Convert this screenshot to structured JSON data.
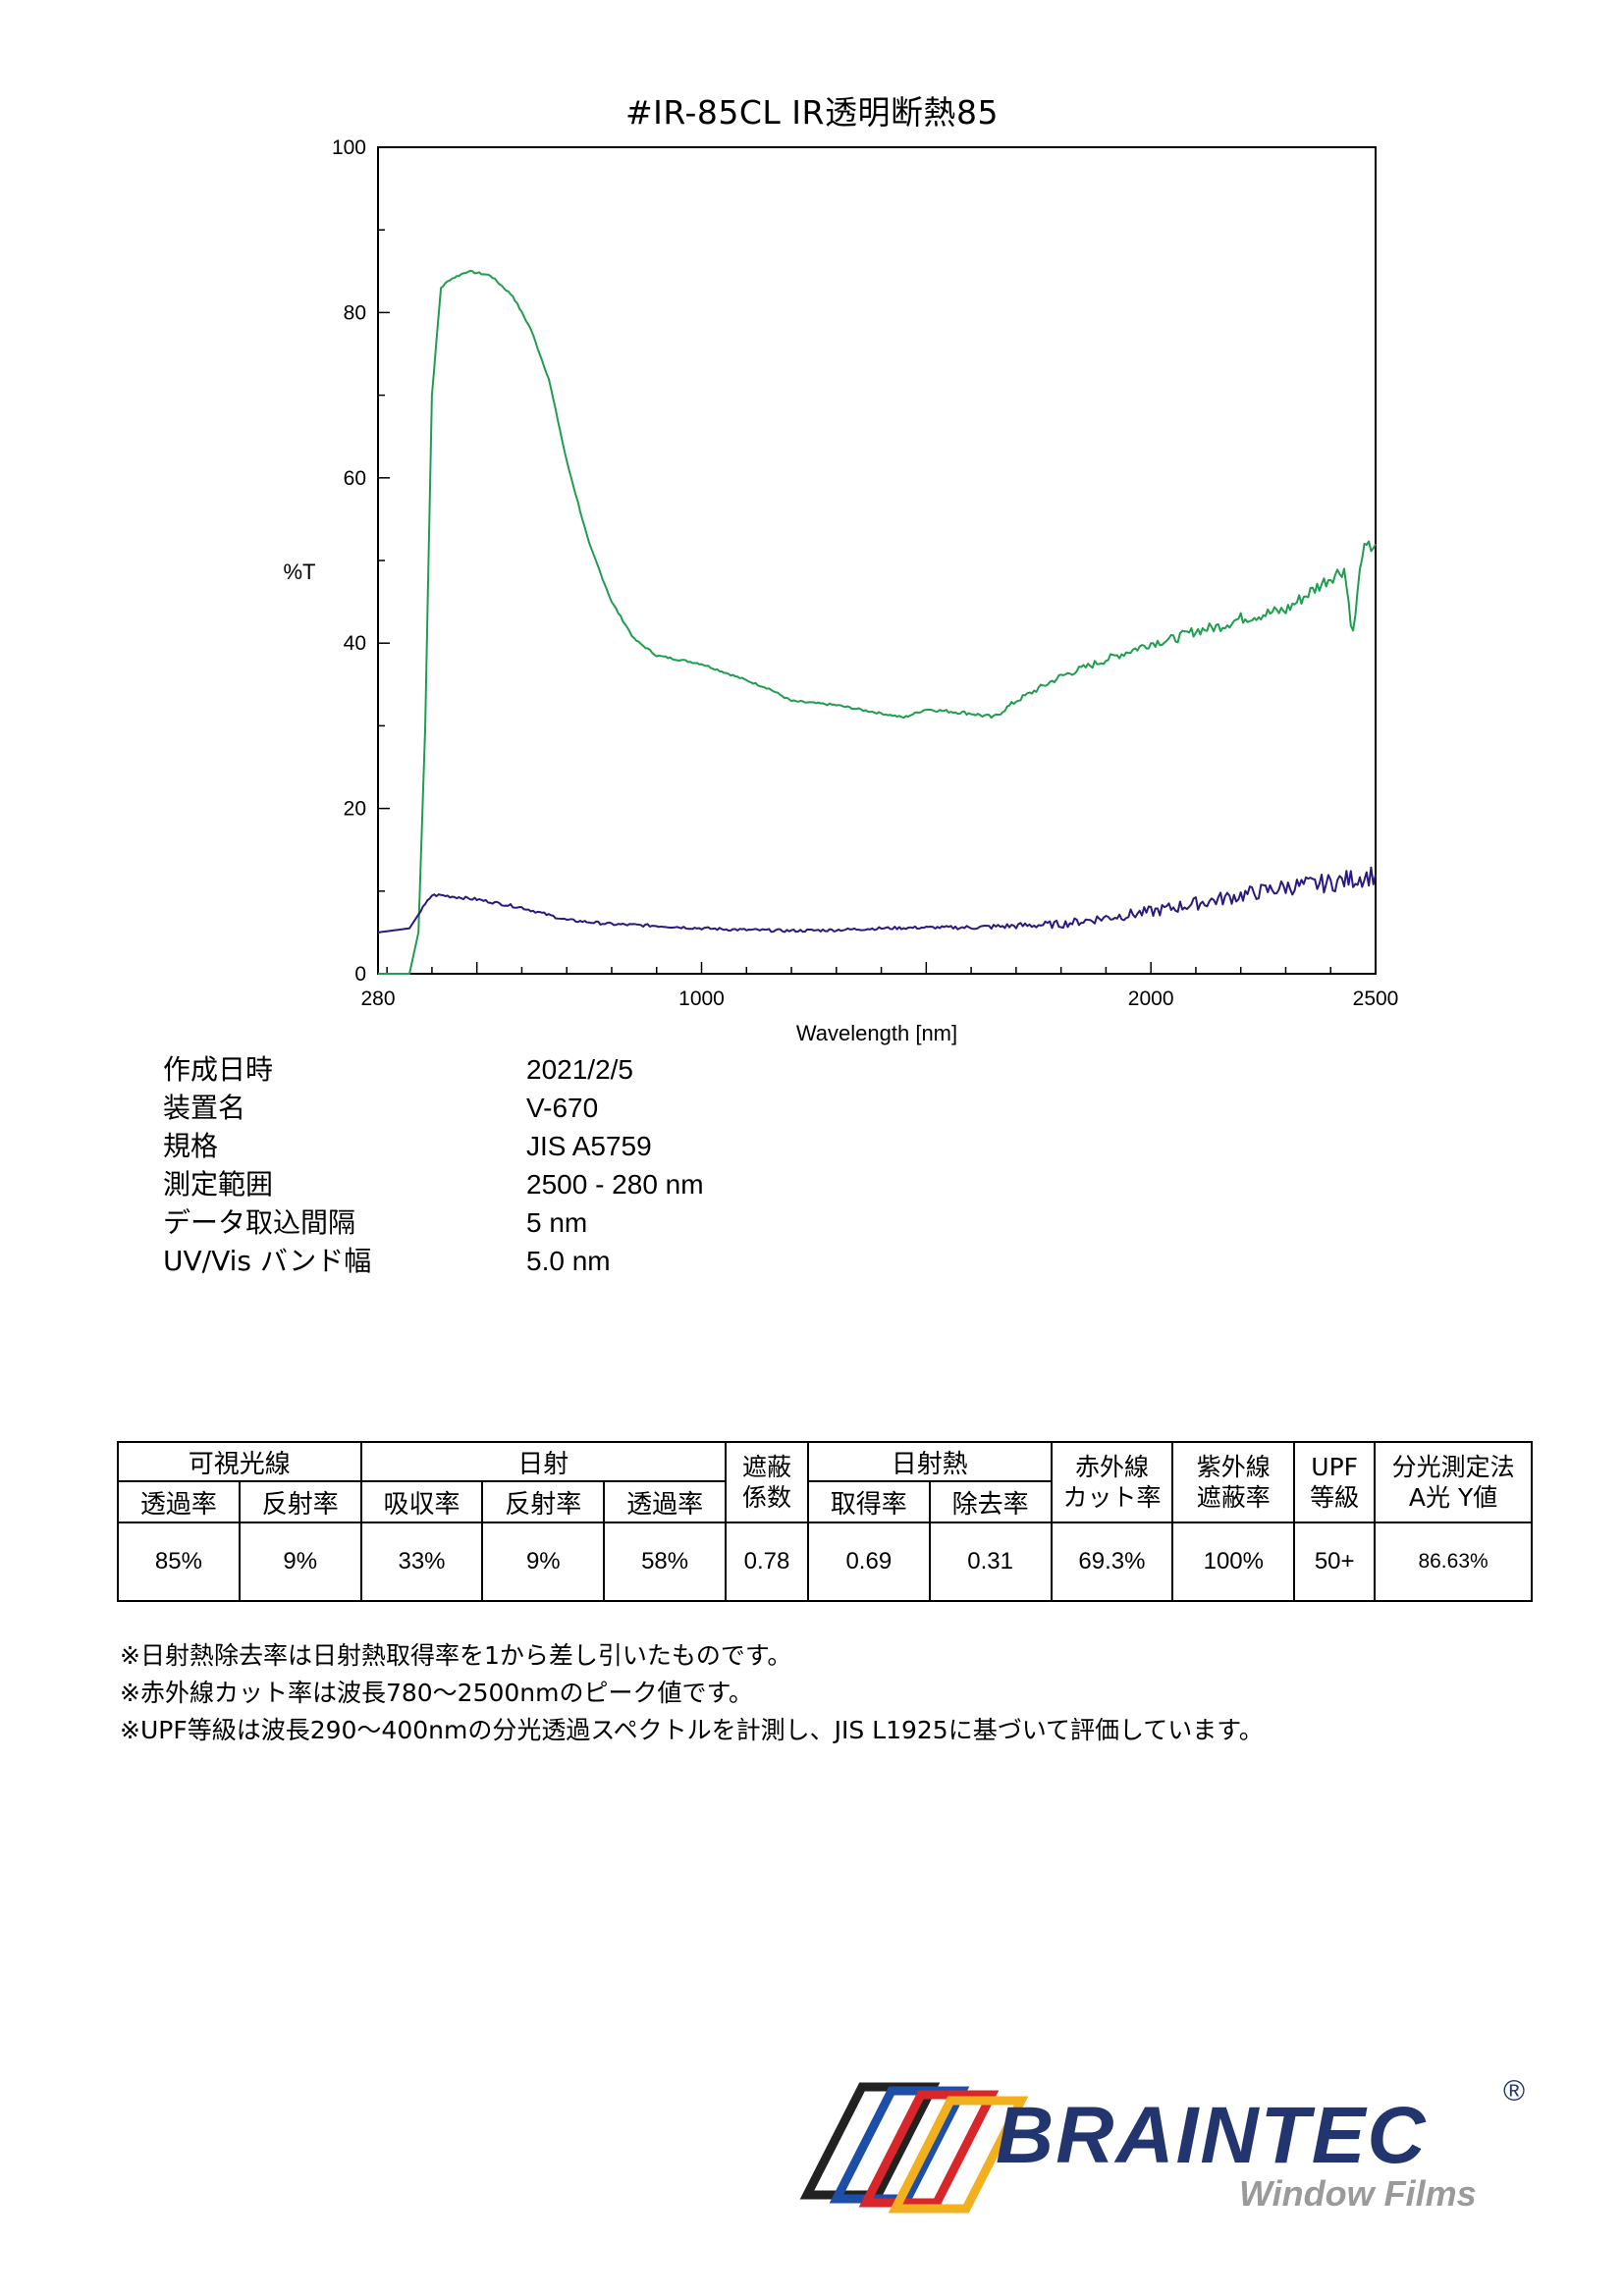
{
  "chart_data": {
    "type": "line",
    "title": "#IR-85CL  IR透明断熱85",
    "xlabel": "Wavelength [nm]",
    "ylabel": "%T",
    "xlim": [
      280,
      2500
    ],
    "ylim": [
      0,
      100
    ],
    "x_ticks": [
      "280",
      "1000",
      "2000",
      "2500"
    ],
    "y_ticks": [
      "0",
      "20",
      "40",
      "60",
      "80",
      "100"
    ],
    "grid": false,
    "legend": "none",
    "series": [
      {
        "color": "#1e9e4e",
        "x": [
          280,
          350,
          370,
          385,
          400,
          420,
          440,
          480,
          530,
          580,
          620,
          660,
          700,
          750,
          800,
          850,
          900,
          950,
          1000,
          1050,
          1100,
          1150,
          1200,
          1300,
          1400,
          1450,
          1500,
          1600,
          1650,
          1700,
          1750,
          1800,
          1850,
          1900,
          1950,
          2000,
          2050,
          2100,
          2150,
          2200,
          2250,
          2300,
          2350,
          2400,
          2430,
          2450,
          2470,
          2500
        ],
        "y": [
          0,
          0,
          5,
          30,
          70,
          83,
          84,
          85,
          84.5,
          82,
          78,
          72,
          62,
          52,
          45,
          40.5,
          38.5,
          38,
          37.5,
          36.5,
          35.5,
          34.5,
          33,
          32.5,
          31.5,
          31,
          32,
          31.5,
          31,
          33,
          34.5,
          36,
          37,
          38,
          39,
          40,
          40.5,
          41.5,
          42,
          43,
          43.5,
          44,
          46,
          48,
          49,
          41,
          51,
          52
        ]
      },
      {
        "color": "#2b1a7e",
        "x": [
          280,
          350,
          380,
          400,
          420,
          500,
          600,
          700,
          800,
          900,
          1000,
          1100,
          1200,
          1300,
          1400,
          1500,
          1600,
          1700,
          1800,
          1900,
          2000,
          2100,
          2200,
          2300,
          2400,
          2500
        ],
        "y": [
          5,
          5.5,
          8,
          9.5,
          9.5,
          9,
          8,
          6.5,
          6,
          5.8,
          5.5,
          5.3,
          5.2,
          5.3,
          5.5,
          5.6,
          5.6,
          5.8,
          6,
          6.8,
          7.5,
          8.5,
          9.5,
          10.5,
          11,
          12
        ]
      }
    ]
  },
  "specs": [
    {
      "label": "作成日時",
      "value": "2021/2/5"
    },
    {
      "label": "装置名",
      "value": "V-670"
    },
    {
      "label": "規格",
      "value": "JIS A5759"
    },
    {
      "label": "測定範囲",
      "value": "2500 - 280 nm"
    },
    {
      "label": "データ取込間隔",
      "value": "5 nm"
    },
    {
      "label": "UV/Vis バンド幅",
      "value": "5.0 nm"
    }
  ],
  "table": {
    "group_visible": "可視光線",
    "group_solar": "日射",
    "shielding_1": "遮蔽",
    "shielding_2": "係数",
    "group_solar_heat": "日射熱",
    "ir_1": "赤外線",
    "ir_2": "カット率",
    "uv_1": "紫外線",
    "uv_2": "遮蔽率",
    "upf_1": "UPF",
    "upf_2": "等級",
    "spec_1": "分光測定法",
    "spec_2": "A光 Y値",
    "sub_vis_trans": "透過率",
    "sub_vis_refl": "反射率",
    "sub_sol_abs": "吸収率",
    "sub_sol_refl": "反射率",
    "sub_sol_trans": "透過率",
    "sub_heat_gain": "取得率",
    "sub_heat_removal": "除去率",
    "values": [
      "85%",
      "9%",
      "33%",
      "9%",
      "58%",
      "0.78",
      "0.69",
      "0.31",
      "69.3%",
      "100%",
      "50+",
      "86.63%"
    ]
  },
  "notes": [
    "※日射熱除去率は日射熱取得率を1から差し引いたものです。",
    "※赤外線カット率は波長780～2500nmのピーク値です。",
    "※UPF等級は波長290～400nmの分光透過スペクトルを計測し、JIS L1925に基づいて評価しています。"
  ],
  "brand": {
    "name": "BRAINTEC",
    "registered": "®",
    "subtitle": "Window Films",
    "colors": {
      "navy": "#23356f",
      "gray": "#9a9a9a",
      "red": "#d9262b",
      "blue": "#1d4fa8",
      "yellow": "#f2b01f",
      "black": "#222222"
    }
  }
}
